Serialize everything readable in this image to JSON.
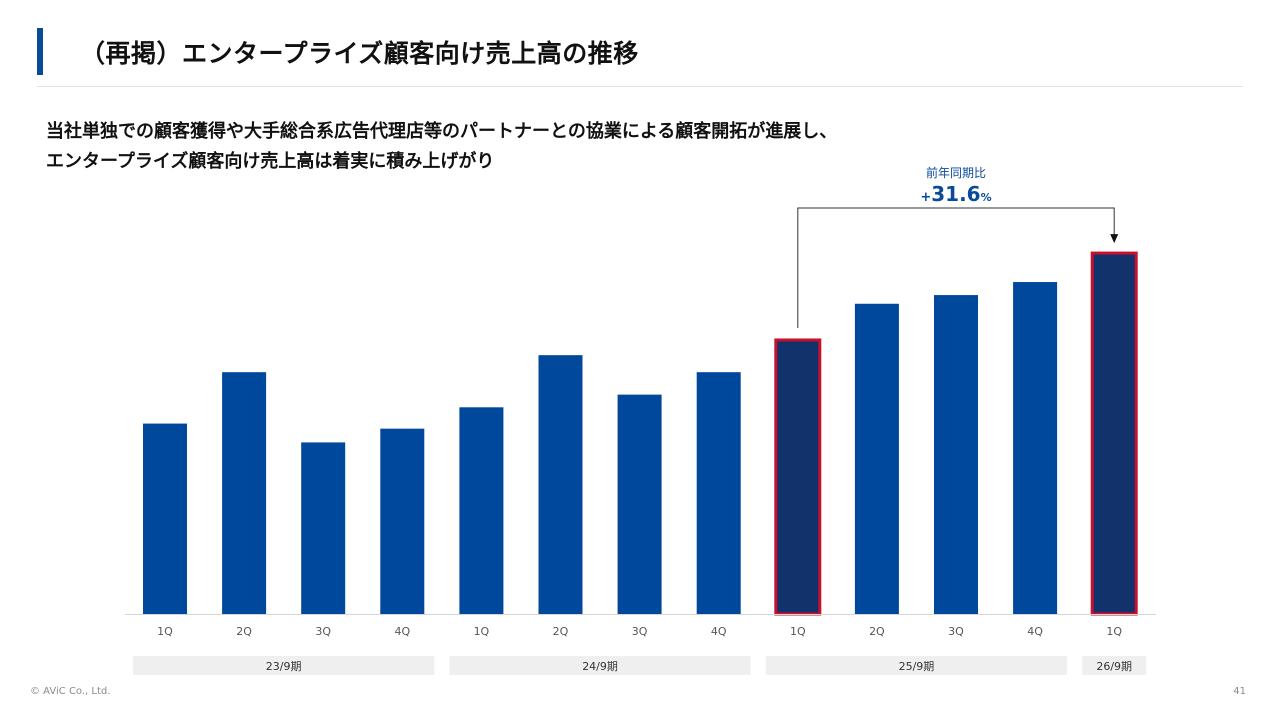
{
  "page": {
    "title": "（再掲）エンタープライズ顧客向け売上高の推移",
    "lead_line1": "当社単独での顧客獲得や大手総合系広告代理店等のパートナーとの協業による顧客開拓が進展し、",
    "lead_line2": "エンタープライズ顧客向け売上高は着実に積み上げがり",
    "footer": "© AViC Co., Ltd.",
    "page_number": "41"
  },
  "colors": {
    "bar": "#00489B",
    "highlight_bar": "#12326B",
    "highlight_border": "#C8102E",
    "accent": "#0A4A9B",
    "group_bg": "#EFEFEF"
  },
  "chart_data": {
    "type": "bar",
    "title": "",
    "xlabel": "",
    "ylabel": "",
    "ylim": [
      0,
      100
    ],
    "categories": [
      "1Q",
      "2Q",
      "3Q",
      "4Q",
      "1Q",
      "2Q",
      "3Q",
      "4Q",
      "1Q",
      "2Q",
      "3Q",
      "4Q",
      "1Q"
    ],
    "values": [
      52.6,
      66.8,
      47.4,
      51.2,
      57.1,
      71.5,
      60.6,
      66.8,
      75.7,
      85.7,
      88.1,
      91.7,
      99.7
    ],
    "highlight": [
      false,
      false,
      false,
      false,
      false,
      false,
      false,
      false,
      true,
      false,
      false,
      false,
      true
    ],
    "groups": [
      {
        "label": "23/9期",
        "start": 0,
        "end": 3
      },
      {
        "label": "24/9期",
        "start": 4,
        "end": 7
      },
      {
        "label": "25/9期",
        "start": 8,
        "end": 11
      },
      {
        "label": "26/9期",
        "start": 12,
        "end": 12
      }
    ],
    "annotation": {
      "label": "前年同期比",
      "value_prefix": "+",
      "value": "31.6",
      "value_suffix": "%",
      "from_index": 8,
      "to_index": 12
    }
  }
}
